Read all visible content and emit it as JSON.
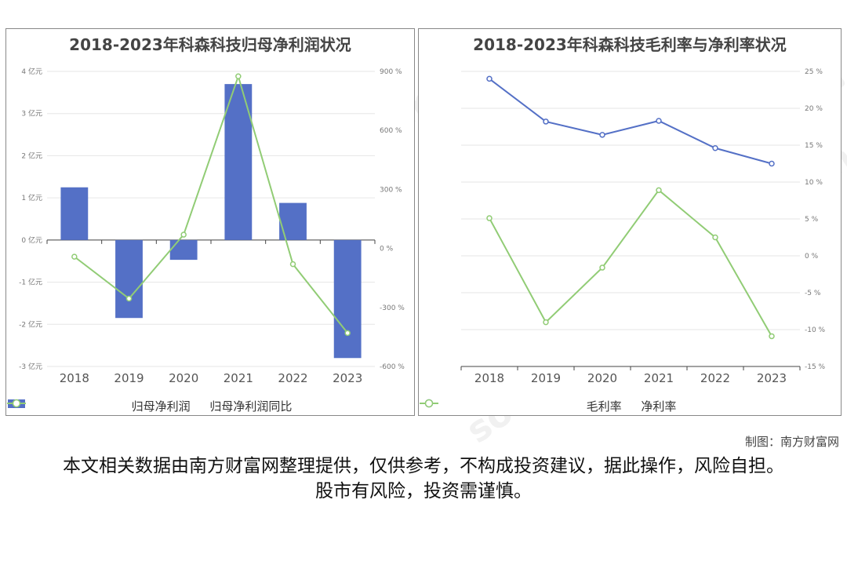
{
  "chart_data": [
    {
      "type": "bar",
      "title": "2018-2023年科森科技归母净利润状况",
      "categories": [
        "2018",
        "2019",
        "2020",
        "2021",
        "2022",
        "2023"
      ],
      "series": [
        {
          "name": "归母净利润",
          "type": "bar",
          "axis": "left",
          "values": [
            1.25,
            -1.85,
            -0.47,
            3.7,
            0.88,
            -2.8
          ]
        },
        {
          "name": "归母净利润同比",
          "type": "line",
          "axis": "right",
          "values": [
            -42,
            -255,
            70,
            875,
            -80,
            -430
          ]
        }
      ],
      "y_left": {
        "ticks": [
          4,
          3,
          2,
          1,
          0,
          -1,
          -2,
          -3
        ],
        "tick_labels": [
          "4 亿元",
          "3 亿元",
          "2 亿元",
          "1 亿元",
          "0 亿元",
          "-1 亿元",
          "-2 亿元",
          "-3 亿元"
        ],
        "ylim": [
          -3,
          4
        ]
      },
      "y_right": {
        "ticks": [
          900,
          600,
          300,
          0,
          -300,
          -600
        ],
        "tick_labels": [
          "900 %",
          "600 %",
          "300 %",
          "0 %",
          "-300 %",
          "-600 %"
        ],
        "ylim": [
          -600,
          900
        ]
      },
      "colors": {
        "bar": "#5470c6",
        "line": "#91cc75"
      },
      "legend_position": "bottom",
      "grid": true
    },
    {
      "type": "line",
      "title": "2018-2023年科森科技毛利率与净利率状况",
      "categories": [
        "2018",
        "2019",
        "2020",
        "2021",
        "2022",
        "2023"
      ],
      "series": [
        {
          "name": "毛利率",
          "values": [
            24,
            18.2,
            16.4,
            18.3,
            14.6,
            12.5
          ]
        },
        {
          "name": "净利率",
          "values": [
            5.1,
            -9,
            -1.6,
            8.9,
            2.5,
            -10.9
          ]
        }
      ],
      "y_right": {
        "ticks": [
          25,
          20,
          15,
          10,
          5,
          0,
          -5,
          -10,
          -15
        ],
        "tick_labels": [
          "25 %",
          "20 %",
          "15 %",
          "10 %",
          "5 %",
          "0 %",
          "-5 %",
          "-10 %",
          "-15 %"
        ],
        "ylim": [
          -15,
          25
        ]
      },
      "colors": {
        "毛利率": "#5470c6",
        "净利率": "#91cc75"
      },
      "legend_position": "bottom",
      "grid": true
    }
  ],
  "credit": "制图：南方财富网",
  "disclaimer": "本文相关数据由南方财富网整理提供，仅供参考，不构成投资建议，据此操作，风险自担。股市有风险，投资需谨慎。",
  "watermark": {
    "cn": "南方财富网",
    "en": "southmoney.com"
  }
}
